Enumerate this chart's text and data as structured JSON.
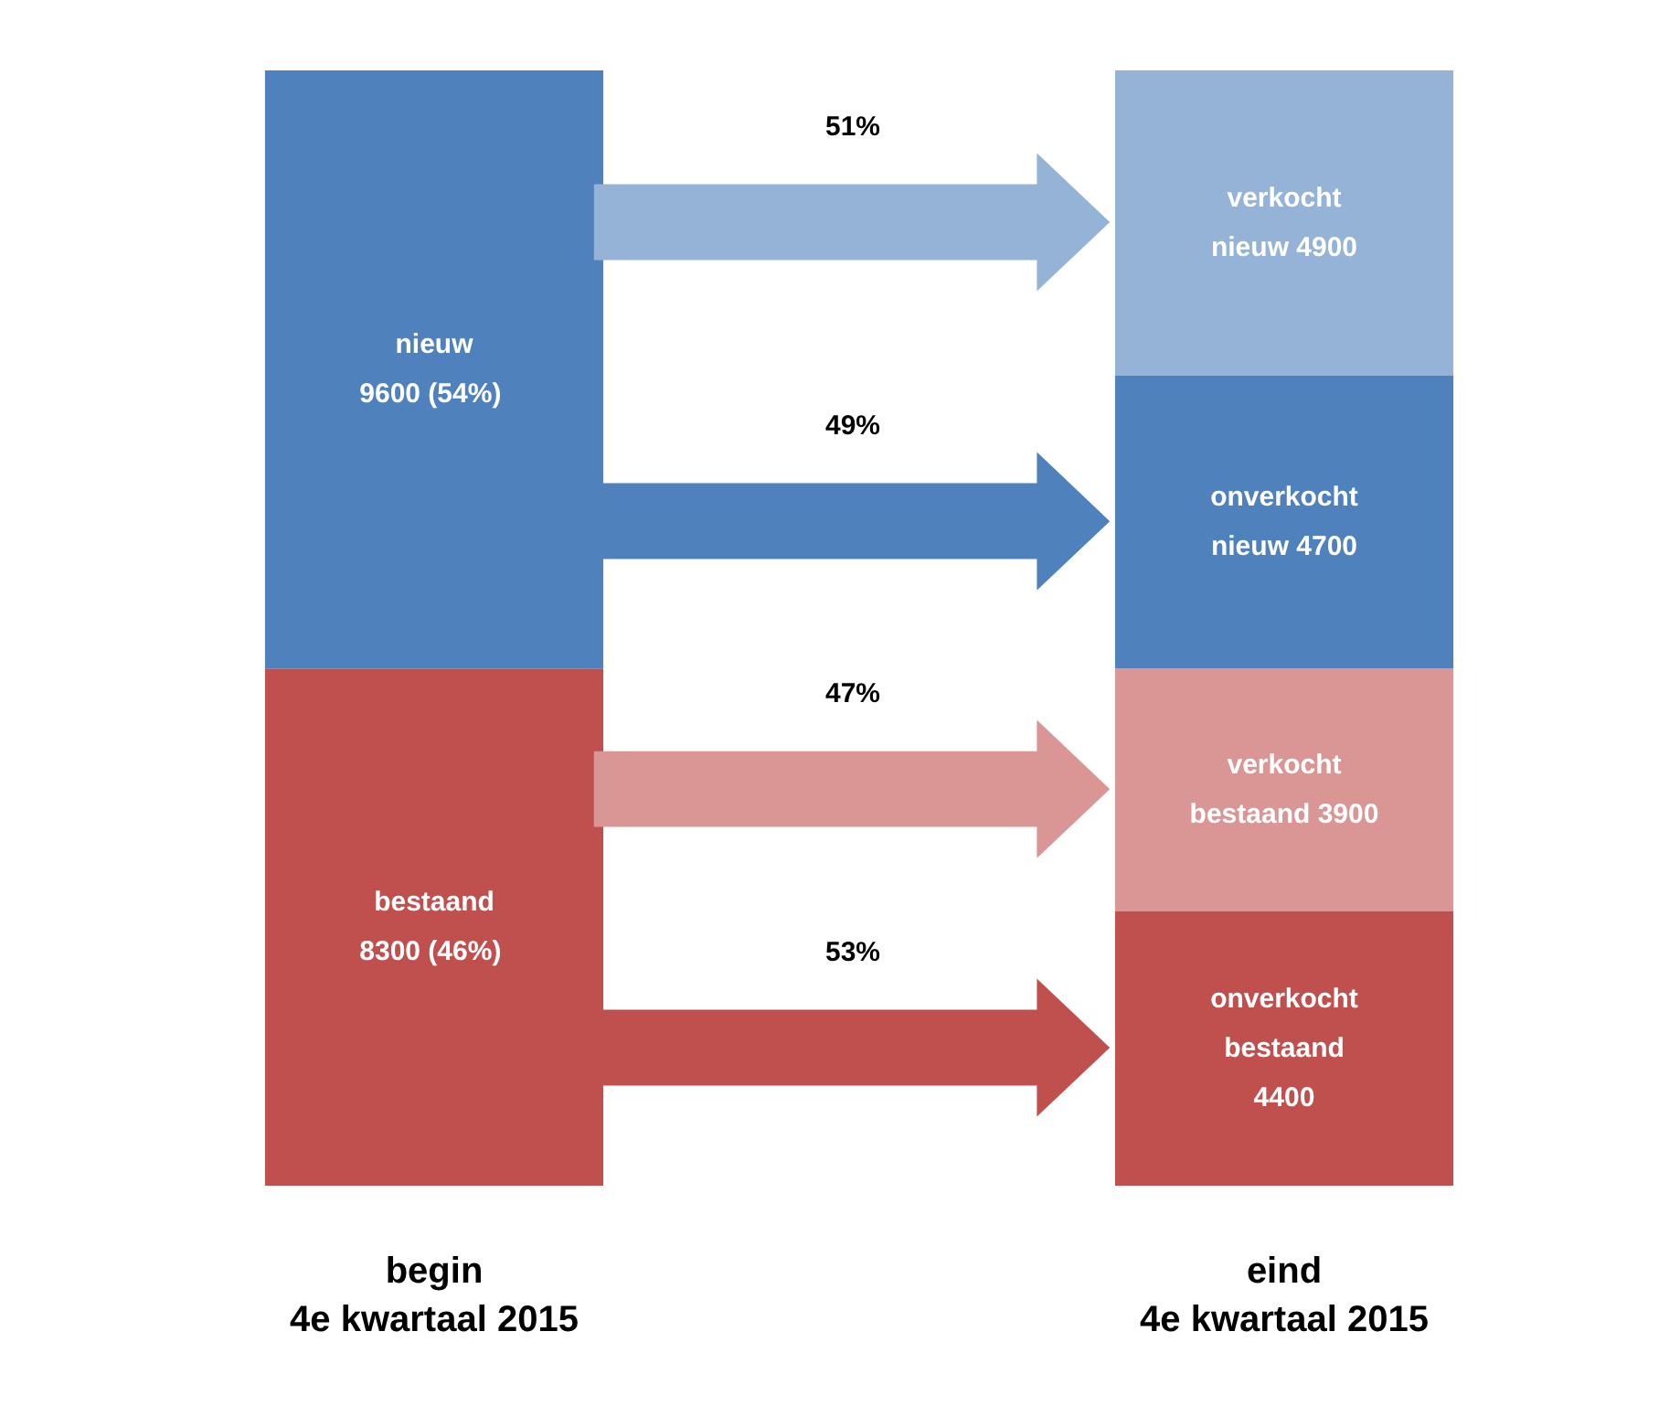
{
  "chart_data": {
    "type": "bar",
    "stacked": true,
    "categories": [
      "begin\n4e kwartaal 2015",
      "eind\n4e kwartaal 2015"
    ],
    "series": [
      {
        "color": "#c0504d",
        "values": [
          8300,
          null
        ],
        "value_labels": [
          "bestaand\n8300  (46%)",
          null
        ]
      },
      {
        "color": "#4f81bd",
        "values": [
          9600,
          null
        ],
        "value_labels": [
          "nieuw\n9600  (54%)",
          null
        ]
      },
      {
        "color": "#c0504d",
        "values": [
          null,
          4400
        ],
        "value_labels": [
          null,
          "onverkocht\nbestaand\n4400"
        ]
      },
      {
        "color": "#d99694",
        "values": [
          null,
          3900
        ],
        "value_labels": [
          null,
          "verkocht\nbestaand 3900"
        ]
      },
      {
        "color": "#4f81bd",
        "values": [
          null,
          4700
        ],
        "value_labels": [
          null,
          "onverkocht\nnieuw 4700"
        ]
      },
      {
        "color": "#95b3d7",
        "values": [
          null,
          4900
        ],
        "value_labels": [
          null,
          "verkocht\nnieuw 4900"
        ]
      }
    ],
    "annotations": [
      "51%",
      "49%",
      "47%",
      "53%"
    ],
    "grid": false
  }
}
